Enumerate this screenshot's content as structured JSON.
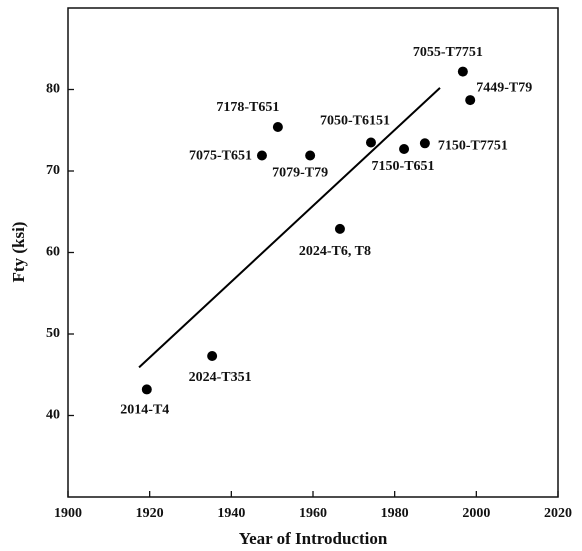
{
  "chart_data": {
    "type": "scatter",
    "x_label": "Year of Introduction",
    "y_label": "Fty (ksi)",
    "points": {
      "labels": [
        "2014-T4",
        "2024-T351",
        "7075-T651",
        "7178-T651",
        "7079-T79",
        "2024-T6, T8",
        "7050-T6151",
        "7150-T651",
        "7150-T7751",
        "7055-T7751",
        "7449-T79"
      ],
      "x": [
        1919.3,
        1935.3,
        1947.5,
        1951.4,
        1959.3,
        1966.6,
        1974.2,
        1982.3,
        1987.4,
        1996.7,
        1998.5
      ],
      "y": [
        43.2,
        47.3,
        71.9,
        75.4,
        71.9,
        62.9,
        73.5,
        72.7,
        73.4,
        82.2,
        78.7
      ],
      "color": "#000000"
    },
    "trend_line": {
      "x": [
        1917.4,
        1991.1
      ],
      "y": [
        45.9,
        80.2
      ],
      "color": "#000000"
    },
    "xlim": [
      1900,
      2020
    ],
    "xticks": [
      1900,
      1920,
      1940,
      1960,
      1980,
      2000,
      2020
    ],
    "ylim": [
      30,
      90
    ],
    "yticks": [
      40,
      50,
      60,
      70,
      80
    ]
  }
}
